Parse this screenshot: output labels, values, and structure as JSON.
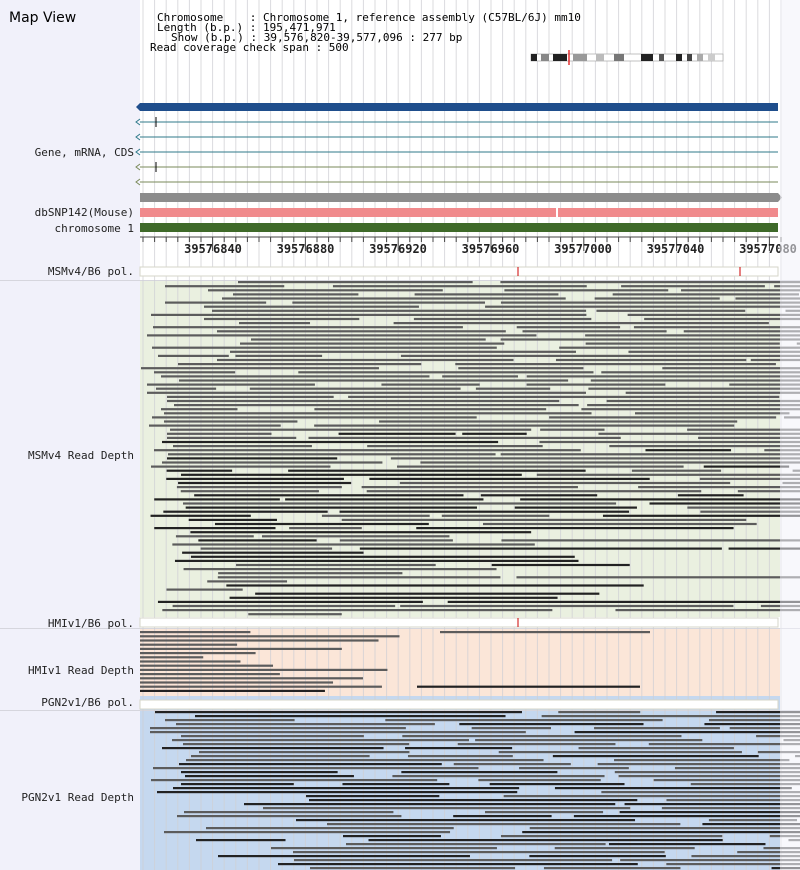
{
  "map_view": {
    "title": "Map View"
  },
  "header": {
    "line1": "Chromosome    : Chromosome 1, reference assembly (C57BL/6J) mm10",
    "line2": "Length (b.p.) : 195,471,971",
    "line3": "Show (b.p.) : 39,576,820-39,577,096 : 277 bp",
    "line4": "Read coverage check span : 500"
  },
  "tracks": {
    "gene": "Gene, mRNA, CDS",
    "dbsnp": "dbSNP142(Mouse)",
    "chrom": "chromosome 1",
    "msm_pol": "MSMv4/B6 pol.",
    "msm_depth": "MSMv4 Read Depth",
    "hmi_pol": "HMIv1/B6 pol.",
    "hmi_depth": "HMIv1 Read Depth",
    "pgn_pol": "PGN2v1/B6 pol.",
    "pgn_depth": "PGN2v1 Read Depth"
  },
  "axis": {
    "ticks": [
      "39576840",
      "39576880",
      "39576920",
      "39576960",
      "39577000",
      "39577040",
      "39577080"
    ]
  },
  "colors": {
    "gene_bar": "#1f4e8c",
    "snp_bar": "#f08a8c",
    "chrom_bar": "#3f6a2a",
    "msm_bg": "#eaf0e0",
    "hmi_bg": "#fbe6d8",
    "pgn_bg": "#c5d8ef",
    "read": "#5c5c5c"
  }
}
